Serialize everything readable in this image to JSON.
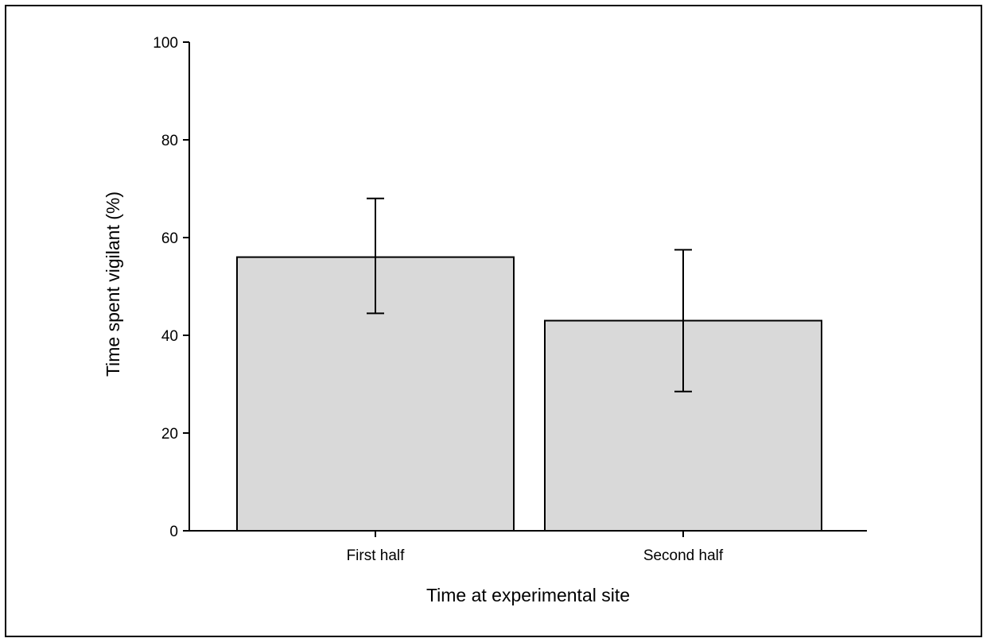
{
  "chart_data": {
    "type": "bar",
    "title": "",
    "xlabel": "Time at experimental site",
    "ylabel": "Time spent vigilant (%)",
    "ylim": [
      0,
      100
    ],
    "yticks": [
      0,
      20,
      40,
      60,
      80,
      100
    ],
    "yticklabels": [
      "0",
      "20",
      "40",
      "60",
      "80",
      "100"
    ],
    "categories": [
      "First half",
      "Second half"
    ],
    "values": [
      56,
      43
    ],
    "error_bars": [
      {
        "lower": 44.5,
        "upper": 68
      },
      {
        "lower": 28.5,
        "upper": 57.5
      }
    ],
    "bar_color": "#d9d9d9",
    "grid": false,
    "legend": "none"
  }
}
